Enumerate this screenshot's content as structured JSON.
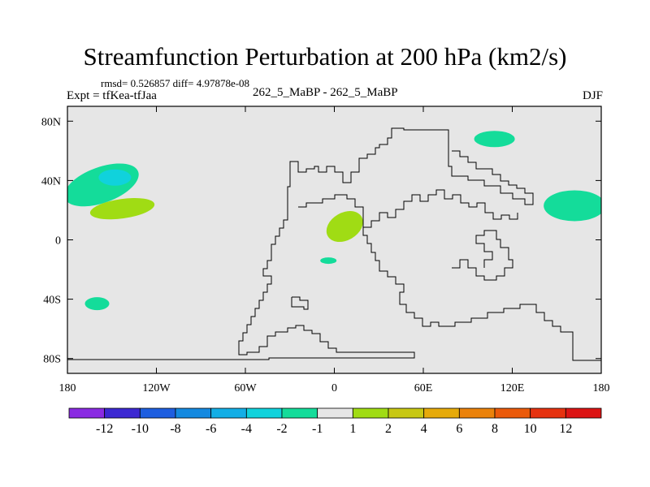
{
  "title": "Streamfunction Perturbation at 200 hPa (km2/s)",
  "stats_line": "rmsd= 0.526857 diff= 4.97878e-08",
  "experiment": "Expt = tfKea-tfJaa",
  "center_label": "262_5_MaBP - 262_5_MaBP",
  "season": "DJF",
  "chart_data": {
    "type": "heatmap",
    "title": "Streamfunction Perturbation at 200 hPa (km2/s)",
    "xlabel": "",
    "ylabel": "",
    "xlim": [
      -180,
      180
    ],
    "ylim": [
      -90,
      90
    ],
    "x_ticks": [
      {
        "value": -180,
        "label": "180"
      },
      {
        "value": -120,
        "label": "120W"
      },
      {
        "value": -60,
        "label": "60W"
      },
      {
        "value": 0,
        "label": "0"
      },
      {
        "value": 60,
        "label": "60E"
      },
      {
        "value": 120,
        "label": "120E"
      },
      {
        "value": 180,
        "label": "180"
      }
    ],
    "y_ticks": [
      {
        "value": 80,
        "label": "80N"
      },
      {
        "value": 40,
        "label": "40N"
      },
      {
        "value": 0,
        "label": "0"
      },
      {
        "value": -40,
        "label": "40S"
      },
      {
        "value": -80,
        "label": "80S"
      }
    ],
    "background_value_range": [
      -1,
      1
    ],
    "anomalies": [
      {
        "lon": -157,
        "lat": 37,
        "value_range": [
          -2,
          -1
        ]
      },
      {
        "lon": -148,
        "lat": 42,
        "value_range": [
          -4,
          -2
        ]
      },
      {
        "lon": -143,
        "lat": 21,
        "value_range": [
          1,
          2
        ]
      },
      {
        "lon": 7,
        "lat": 9,
        "value_range": [
          1,
          2
        ]
      },
      {
        "lon": -4,
        "lat": -14,
        "value_range": [
          -2,
          -1
        ]
      },
      {
        "lon": -160,
        "lat": -43,
        "value_range": [
          -2,
          -1
        ]
      },
      {
        "lon": 108,
        "lat": 68,
        "value_range": [
          -2,
          -1
        ]
      },
      {
        "lon": 162,
        "lat": 23,
        "value_range": [
          -2,
          -1
        ]
      }
    ],
    "colorbar": {
      "labels": [
        "-12",
        "-10",
        "-8",
        "-6",
        "-4",
        "-2",
        "-1",
        "1",
        "2",
        "4",
        "6",
        "8",
        "10",
        "12"
      ],
      "colors": [
        "#8a2be2",
        "#3c28d2",
        "#1e5ee0",
        "#1489e0",
        "#13aee6",
        "#10d2dc",
        "#14dc9a",
        "#e6e6e6",
        "#a0dc14",
        "#c8c814",
        "#e6aa0a",
        "#eb820a",
        "#eb5a0a",
        "#e6320f",
        "#dc1414"
      ]
    }
  }
}
